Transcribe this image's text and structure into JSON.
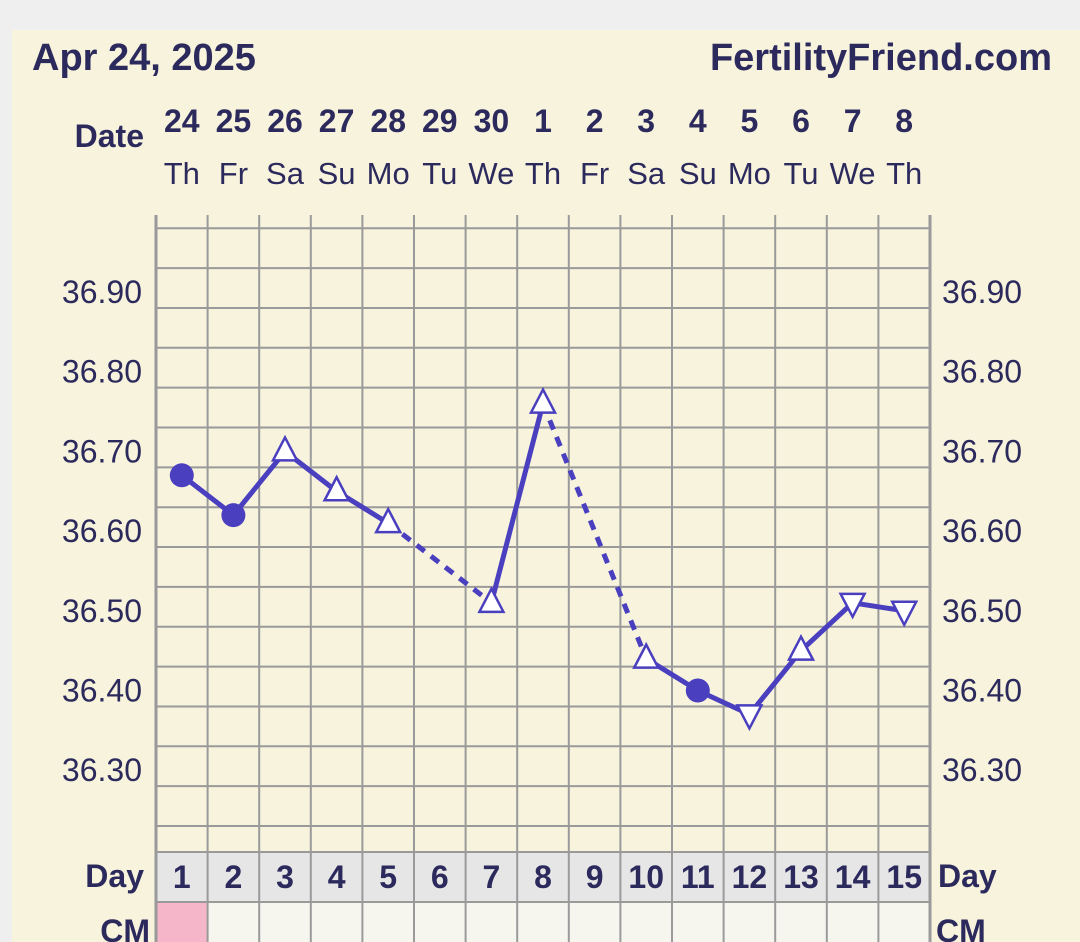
{
  "header": {
    "date_label": "Apr 24, 2025",
    "site_label": "FertilityFriend.com"
  },
  "rows": {
    "date_label": "Date",
    "day_label": "Day",
    "cm_label": "CM"
  },
  "colors": {
    "line": "#4a3fbf",
    "text": "#2c2a5c",
    "grid": "#9a9a9a",
    "background": "#f7f3dd",
    "day_row": "#e6e6e6",
    "cm_day1": "#f4b6c8"
  },
  "chart_data": {
    "type": "line",
    "title": "",
    "xlabel": "Day",
    "ylabel": "",
    "ylim": [
      36.2,
      36.98
    ],
    "y_ticks": [
      "36.90",
      "36.80",
      "36.70",
      "36.60",
      "36.50",
      "36.40",
      "36.30"
    ],
    "days": [
      "1",
      "2",
      "3",
      "4",
      "5",
      "6",
      "7",
      "8",
      "9",
      "10",
      "11",
      "12",
      "13",
      "14",
      "15"
    ],
    "dates": [
      "24",
      "25",
      "26",
      "27",
      "28",
      "29",
      "30",
      "1",
      "2",
      "3",
      "4",
      "5",
      "6",
      "7",
      "8"
    ],
    "weekdays": [
      "Th",
      "Fr",
      "Sa",
      "Su",
      "Mo",
      "Tu",
      "We",
      "Th",
      "Fr",
      "Sa",
      "Su",
      "Mo",
      "Tu",
      "We",
      "Th"
    ],
    "series": [
      {
        "points": [
          {
            "day": 1,
            "temp": 36.67,
            "marker": "dot"
          },
          {
            "day": 2,
            "temp": 36.62,
            "marker": "dot"
          },
          {
            "day": 3,
            "temp": 36.7,
            "marker": "triangle-up"
          },
          {
            "day": 4,
            "temp": 36.65,
            "marker": "triangle-up"
          },
          {
            "day": 5,
            "temp": 36.61,
            "marker": "triangle-up"
          },
          {
            "day": 7,
            "temp": 36.51,
            "marker": "triangle-up"
          },
          {
            "day": 8,
            "temp": 36.76,
            "marker": "triangle-up"
          },
          {
            "day": 10,
            "temp": 36.44,
            "marker": "triangle-up"
          },
          {
            "day": 11,
            "temp": 36.4,
            "marker": "dot"
          },
          {
            "day": 12,
            "temp": 36.37,
            "marker": "triangle-down"
          },
          {
            "day": 13,
            "temp": 36.45,
            "marker": "triangle-up"
          },
          {
            "day": 14,
            "temp": 36.51,
            "marker": "triangle-down"
          },
          {
            "day": 15,
            "temp": 36.5,
            "marker": "triangle-down"
          }
        ],
        "segments": [
          {
            "from": 1,
            "to": 2,
            "style": "solid"
          },
          {
            "from": 2,
            "to": 3,
            "style": "solid"
          },
          {
            "from": 3,
            "to": 4,
            "style": "solid"
          },
          {
            "from": 4,
            "to": 5,
            "style": "solid"
          },
          {
            "from": 5,
            "to": 7,
            "style": "dashed"
          },
          {
            "from": 7,
            "to": 8,
            "style": "solid"
          },
          {
            "from": 8,
            "to": 10,
            "style": "dashed"
          },
          {
            "from": 10,
            "to": 11,
            "style": "solid"
          },
          {
            "from": 11,
            "to": 12,
            "style": "solid"
          },
          {
            "from": 12,
            "to": 13,
            "style": "solid"
          },
          {
            "from": 13,
            "to": 14,
            "style": "solid"
          },
          {
            "from": 14,
            "to": 15,
            "style": "solid"
          }
        ]
      }
    ],
    "cm_marked_days": [
      1
    ],
    "grid": true
  }
}
